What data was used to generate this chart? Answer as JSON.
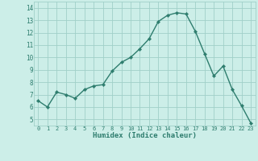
{
  "x": [
    0,
    1,
    2,
    3,
    4,
    5,
    6,
    7,
    8,
    9,
    10,
    11,
    12,
    13,
    14,
    15,
    16,
    17,
    18,
    19,
    20,
    21,
    22,
    23
  ],
  "y": [
    6.5,
    6.0,
    7.2,
    7.0,
    6.7,
    7.4,
    7.7,
    7.8,
    8.9,
    9.6,
    10.0,
    10.7,
    11.5,
    12.9,
    13.4,
    13.6,
    13.5,
    12.1,
    10.3,
    8.5,
    9.3,
    7.4,
    6.1,
    4.7
  ],
  "xlabel": "Humidex (Indice chaleur)",
  "line_color": "#2e7d6e",
  "bg_color": "#cceee8",
  "grid_color": "#a0d0c8",
  "ylim": [
    4.5,
    14.5
  ],
  "xlim": [
    -0.5,
    23.5
  ],
  "yticks": [
    5,
    6,
    7,
    8,
    9,
    10,
    11,
    12,
    13,
    14
  ],
  "xticks": [
    0,
    1,
    2,
    3,
    4,
    5,
    6,
    7,
    8,
    9,
    10,
    11,
    12,
    13,
    14,
    15,
    16,
    17,
    18,
    19,
    20,
    21,
    22,
    23
  ],
  "marker_size": 2.2,
  "line_width": 1.0
}
